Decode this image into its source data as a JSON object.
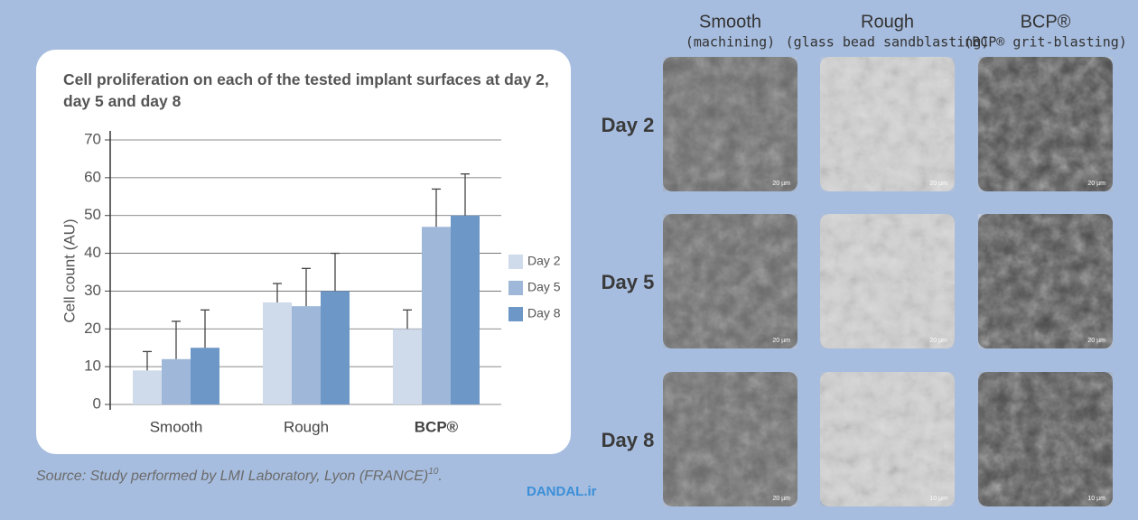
{
  "chart_data": {
    "type": "bar",
    "title": "Cell proliferation on each of the tested implant surfaces at day 2, day 5 and day 8",
    "y_label": "Cell count (AU)",
    "categories": [
      "Smooth",
      "Rough",
      "BCP®"
    ],
    "series": [
      {
        "name": "Day 2",
        "color": "#cfdbeb",
        "values": [
          9,
          27,
          20
        ],
        "errors": [
          5,
          5,
          5
        ]
      },
      {
        "name": "Day 5",
        "color": "#9fb8da",
        "values": [
          12,
          26,
          47
        ],
        "errors": [
          10,
          10,
          10
        ]
      },
      {
        "name": "Day 8",
        "color": "#6c97c6",
        "values": [
          15,
          30,
          50
        ],
        "errors": [
          10,
          10,
          11
        ]
      }
    ],
    "ylim": [
      0,
      70
    ],
    "yticks": [
      0,
      10,
      20,
      30,
      40,
      50,
      60,
      70
    ],
    "grid": true,
    "legend": "right"
  },
  "source": "Source: Study performed by LMI Laboratory, Lyon (FRANCE)",
  "source_ref": "10",
  "source_end": ".",
  "watermark": "DANDAL.ir",
  "gallery": {
    "columns": [
      {
        "title": "Smooth",
        "subtitle": "(machining)"
      },
      {
        "title": "Rough",
        "subtitle": "(glass bead sandblasting)"
      },
      {
        "title": "BCP®",
        "subtitle": "(BCP® grit-blasting)"
      }
    ],
    "rows": [
      "Day 2",
      "Day 5",
      "Day 8"
    ],
    "scale_labels": [
      [
        "20 µm",
        "20 µm",
        "20 µm"
      ],
      [
        "20 µm",
        "20 µm",
        "20 µm"
      ],
      [
        "20 µm",
        "10 µm",
        "10 µm"
      ]
    ]
  }
}
